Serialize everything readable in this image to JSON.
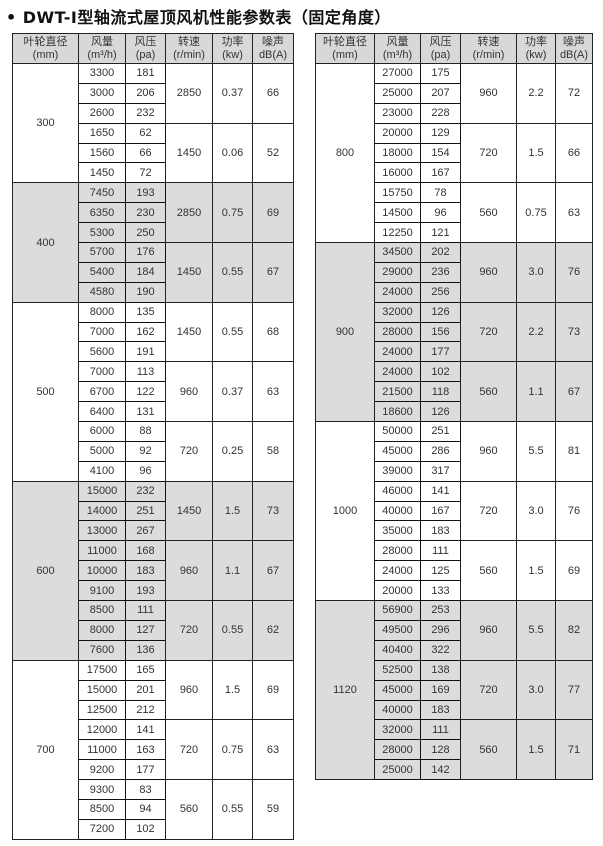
{
  "title": "DWT-Ⅰ型轴流式屋顶风机性能参数表（固定角度）",
  "headers": [
    {
      "l1": "叶轮直径",
      "l2": "(mm)"
    },
    {
      "l1": "风量",
      "l2": "(m³/h)"
    },
    {
      "l1": "风压",
      "l2": "(pa)"
    },
    {
      "l1": "转速",
      "l2": "(r/min)"
    },
    {
      "l1": "功率",
      "l2": "(kw)"
    },
    {
      "l1": "噪声",
      "l2": "dB(A)"
    }
  ],
  "shade_color": "#dcdcdc",
  "tables": [
    {
      "groups": [
        {
          "diameter": "300",
          "shaded": false,
          "speeds": [
            {
              "rpm": "2850",
              "kw": "0.37",
              "db": "66",
              "points": [
                [
                  "3300",
                  "181"
                ],
                [
                  "3000",
                  "206"
                ],
                [
                  "2600",
                  "232"
                ]
              ]
            },
            {
              "rpm": "1450",
              "kw": "0.06",
              "db": "52",
              "points": [
                [
                  "1650",
                  "62"
                ],
                [
                  "1560",
                  "66"
                ],
                [
                  "1450",
                  "72"
                ]
              ]
            }
          ]
        },
        {
          "diameter": "400",
          "shaded": true,
          "speeds": [
            {
              "rpm": "2850",
              "kw": "0.75",
              "db": "69",
              "points": [
                [
                  "7450",
                  "193"
                ],
                [
                  "6350",
                  "230"
                ],
                [
                  "5300",
                  "250"
                ]
              ]
            },
            {
              "rpm": "1450",
              "kw": "0.55",
              "db": "67",
              "points": [
                [
                  "5700",
                  "176"
                ],
                [
                  "5400",
                  "184"
                ],
                [
                  "4580",
                  "190"
                ]
              ]
            }
          ]
        },
        {
          "diameter": "500",
          "shaded": false,
          "speeds": [
            {
              "rpm": "1450",
              "kw": "0.55",
              "db": "68",
              "points": [
                [
                  "8000",
                  "135"
                ],
                [
                  "7000",
                  "162"
                ],
                [
                  "5600",
                  "191"
                ]
              ]
            },
            {
              "rpm": "960",
              "kw": "0.37",
              "db": "63",
              "points": [
                [
                  "7000",
                  "113"
                ],
                [
                  "6700",
                  "122"
                ],
                [
                  "6400",
                  "131"
                ]
              ]
            },
            {
              "rpm": "720",
              "kw": "0.25",
              "db": "58",
              "points": [
                [
                  "6000",
                  "88"
                ],
                [
                  "5000",
                  "92"
                ],
                [
                  "4100",
                  "96"
                ]
              ]
            }
          ]
        },
        {
          "diameter": "600",
          "shaded": true,
          "speeds": [
            {
              "rpm": "1450",
              "kw": "1.5",
              "db": "73",
              "points": [
                [
                  "15000",
                  "232"
                ],
                [
                  "14000",
                  "251"
                ],
                [
                  "13000",
                  "267"
                ]
              ]
            },
            {
              "rpm": "960",
              "kw": "1.1",
              "db": "67",
              "points": [
                [
                  "11000",
                  "168"
                ],
                [
                  "10000",
                  "183"
                ],
                [
                  "9100",
                  "193"
                ]
              ]
            },
            {
              "rpm": "720",
              "kw": "0.55",
              "db": "62",
              "points": [
                [
                  "8500",
                  "111"
                ],
                [
                  "8000",
                  "127"
                ],
                [
                  "7600",
                  "136"
                ]
              ]
            }
          ]
        },
        {
          "diameter": "700",
          "shaded": false,
          "speeds": [
            {
              "rpm": "960",
              "kw": "1.5",
              "db": "69",
              "points": [
                [
                  "17500",
                  "165"
                ],
                [
                  "15000",
                  "201"
                ],
                [
                  "12500",
                  "212"
                ]
              ]
            },
            {
              "rpm": "720",
              "kw": "0.75",
              "db": "63",
              "points": [
                [
                  "12000",
                  "141"
                ],
                [
                  "11000",
                  "163"
                ],
                [
                  "9200",
                  "177"
                ]
              ]
            },
            {
              "rpm": "560",
              "kw": "0.55",
              "db": "59",
              "points": [
                [
                  "9300",
                  "83"
                ],
                [
                  "8500",
                  "94"
                ],
                [
                  "7200",
                  "102"
                ]
              ]
            }
          ]
        }
      ]
    },
    {
      "groups": [
        {
          "diameter": "800",
          "shaded": false,
          "speeds": [
            {
              "rpm": "960",
              "kw": "2.2",
              "db": "72",
              "points": [
                [
                  "27000",
                  "175"
                ],
                [
                  "25000",
                  "207"
                ],
                [
                  "23000",
                  "228"
                ]
              ]
            },
            {
              "rpm": "720",
              "kw": "1.5",
              "db": "66",
              "points": [
                [
                  "20000",
                  "129"
                ],
                [
                  "18000",
                  "154"
                ],
                [
                  "16000",
                  "167"
                ]
              ]
            },
            {
              "rpm": "560",
              "kw": "0.75",
              "db": "63",
              "points": [
                [
                  "15750",
                  "78"
                ],
                [
                  "14500",
                  "96"
                ],
                [
                  "12250",
                  "121"
                ]
              ]
            }
          ]
        },
        {
          "diameter": "900",
          "shaded": true,
          "speeds": [
            {
              "rpm": "960",
              "kw": "3.0",
              "db": "76",
              "points": [
                [
                  "34500",
                  "202"
                ],
                [
                  "29000",
                  "236"
                ],
                [
                  "24000",
                  "256"
                ]
              ]
            },
            {
              "rpm": "720",
              "kw": "2.2",
              "db": "73",
              "points": [
                [
                  "32000",
                  "126"
                ],
                [
                  "28000",
                  "156"
                ],
                [
                  "24000",
                  "177"
                ]
              ]
            },
            {
              "rpm": "560",
              "kw": "1.1",
              "db": "67",
              "points": [
                [
                  "24000",
                  "102"
                ],
                [
                  "21500",
                  "118"
                ],
                [
                  "18600",
                  "126"
                ]
              ]
            }
          ]
        },
        {
          "diameter": "1000",
          "shaded": false,
          "speeds": [
            {
              "rpm": "960",
              "kw": "5.5",
              "db": "81",
              "points": [
                [
                  "50000",
                  "251"
                ],
                [
                  "45000",
                  "286"
                ],
                [
                  "39000",
                  "317"
                ]
              ]
            },
            {
              "rpm": "720",
              "kw": "3.0",
              "db": "76",
              "points": [
                [
                  "46000",
                  "141"
                ],
                [
                  "40000",
                  "167"
                ],
                [
                  "35000",
                  "183"
                ]
              ]
            },
            {
              "rpm": "560",
              "kw": "1.5",
              "db": "69",
              "points": [
                [
                  "28000",
                  "111"
                ],
                [
                  "24000",
                  "125"
                ],
                [
                  "20000",
                  "133"
                ]
              ]
            }
          ]
        },
        {
          "diameter": "1120",
          "shaded": true,
          "speeds": [
            {
              "rpm": "960",
              "kw": "5.5",
              "db": "82",
              "points": [
                [
                  "56900",
                  "253"
                ],
                [
                  "49500",
                  "296"
                ],
                [
                  "40400",
                  "322"
                ]
              ]
            },
            {
              "rpm": "720",
              "kw": "3.0",
              "db": "77",
              "points": [
                [
                  "52500",
                  "138"
                ],
                [
                  "45000",
                  "169"
                ],
                [
                  "40000",
                  "183"
                ]
              ]
            },
            {
              "rpm": "560",
              "kw": "1.5",
              "db": "71",
              "points": [
                [
                  "32000",
                  "111"
                ],
                [
                  "28000",
                  "128"
                ],
                [
                  "25000",
                  "142"
                ]
              ]
            }
          ]
        }
      ]
    }
  ]
}
